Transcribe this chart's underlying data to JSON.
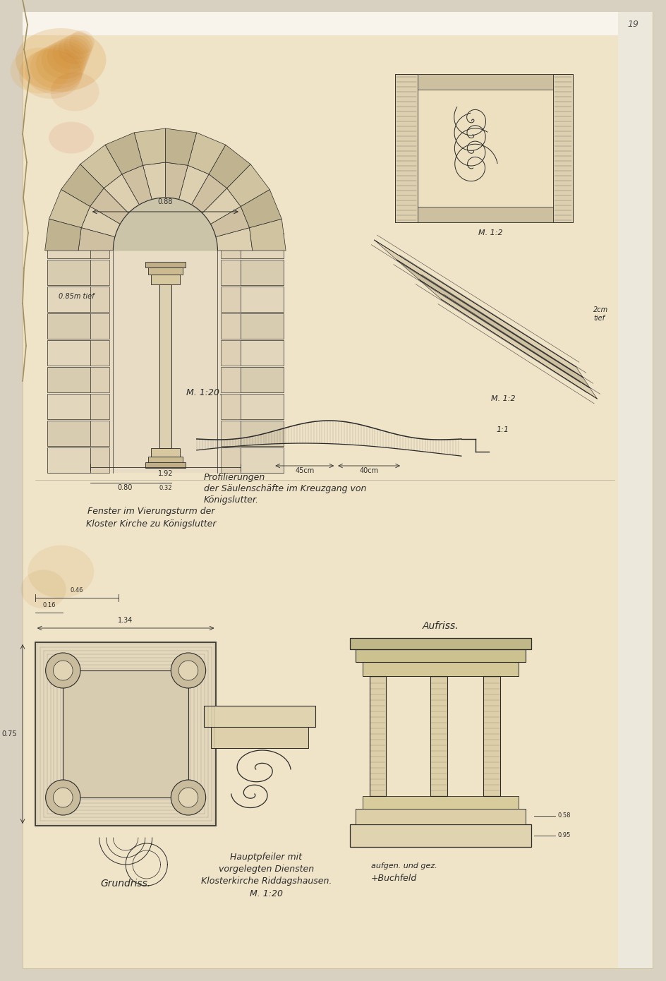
{
  "background_color": "#f5e8c8",
  "paper_color": "#ede0b8",
  "border_color": "#d4c090",
  "line_color": "#1a1a1a",
  "ink_color": "#2a2a2a",
  "title": "",
  "page_number": "19",
  "figsize": [
    9.45,
    13.9
  ],
  "dpi": 100,
  "labels": {
    "window_title": "Fenster im Vierungsturm der",
    "window_title2": "Kloster Kirche zu Königslutter",
    "scale_window": "M. 1:20.",
    "scale_ornament": "M. 1:2",
    "scale_profile": "M. 1:2",
    "scale_profiles2": "1:1",
    "profile_title": "Profilierungen",
    "profile_title2": "der Säulenschäfte im Kreuzgang von",
    "profile_title3": "Königslutter.",
    "pier_title": "Hauptpfeiler mit",
    "pier_title2": "vorgelegten Diensten",
    "pier_title3": "Klosterkirche Riddagshausen.",
    "floorplan": "Grundriss.",
    "scale_pier": "M. 1:20",
    "elevation": "Aufriss.",
    "author": "aufgen. und gez.",
    "author2": "+Buchfeld"
  }
}
